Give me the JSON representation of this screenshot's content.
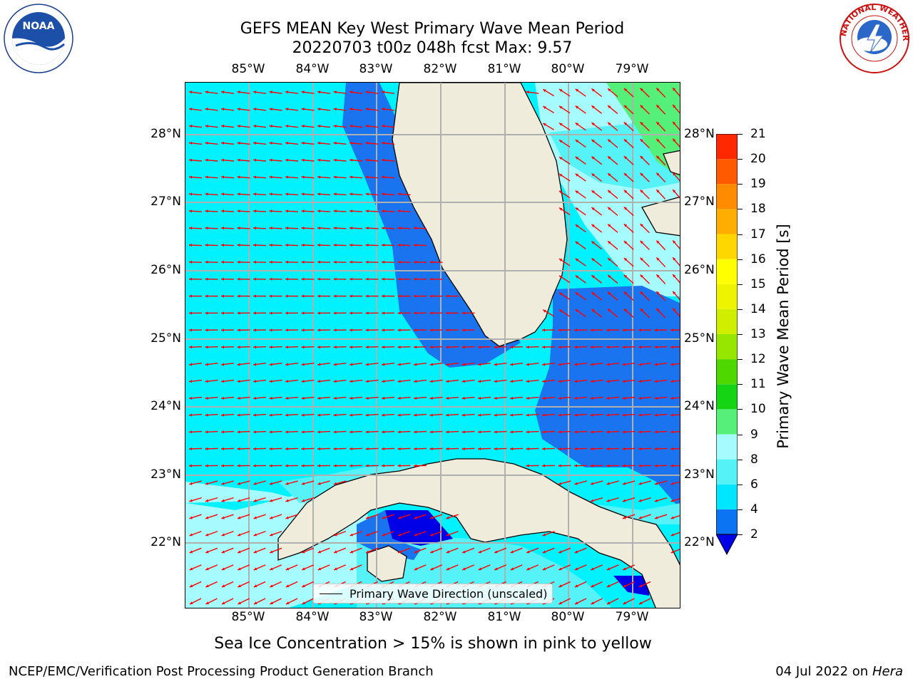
{
  "title": {
    "line1": "GEFS MEAN Key West Primary Wave Mean Period",
    "line2": "20220703 t00z 048h fcst    Max: 9.57"
  },
  "axes": {
    "lon_labels": [
      "85°W",
      "84°W",
      "83°W",
      "82°W",
      "81°W",
      "80°W",
      "79°W"
    ],
    "lat_labels": [
      "28°N",
      "27°N",
      "26°N",
      "25°N",
      "24°N",
      "23°N",
      "22°N"
    ]
  },
  "colorbar": {
    "label": "Primary Wave Mean Period [s]",
    "ticks": [
      "2",
      "4",
      "6",
      "8",
      "9",
      "10",
      "11",
      "12",
      "13",
      "14",
      "15",
      "16",
      "17",
      "18",
      "19",
      "20",
      "21"
    ],
    "colors": [
      "#0a74f2",
      "#00e6ff",
      "#55f2f8",
      "#a6fbff",
      "#55f07a",
      "#14d414",
      "#4fd800",
      "#97e600",
      "#cfee00",
      "#eef400",
      "#ffff00",
      "#ffd700",
      "#ffae00",
      "#ff8b00",
      "#ff5a00",
      "#ff2800",
      "#dd0000"
    ],
    "extend_color": "#0000e6"
  },
  "legend": {
    "label": "Primary Wave Direction (unscaled)"
  },
  "footnote": "Sea Ice Concentration > 15% is shown in pink to yellow",
  "footer": {
    "left": "NCEP/EMC/Verification Post Processing Product Generation Branch",
    "right_prefix": "04 Jul 2022 on ",
    "right_host": "Hera"
  },
  "logos": {
    "left": "NOAA",
    "right": "NATIONAL WEATHER SERVICE"
  },
  "map_colors": {
    "ocean_light": "#00f2ff",
    "ocean_pale": "#a6fbff",
    "ocean_mid": "#55f2f8",
    "ocean_dark": "#1a74f0",
    "ocean_deep": "#0000e6",
    "ocean_green": "#55f07a",
    "land": "#efecdc",
    "arrow": "#ff0000",
    "grid": "#b0b0b0"
  }
}
